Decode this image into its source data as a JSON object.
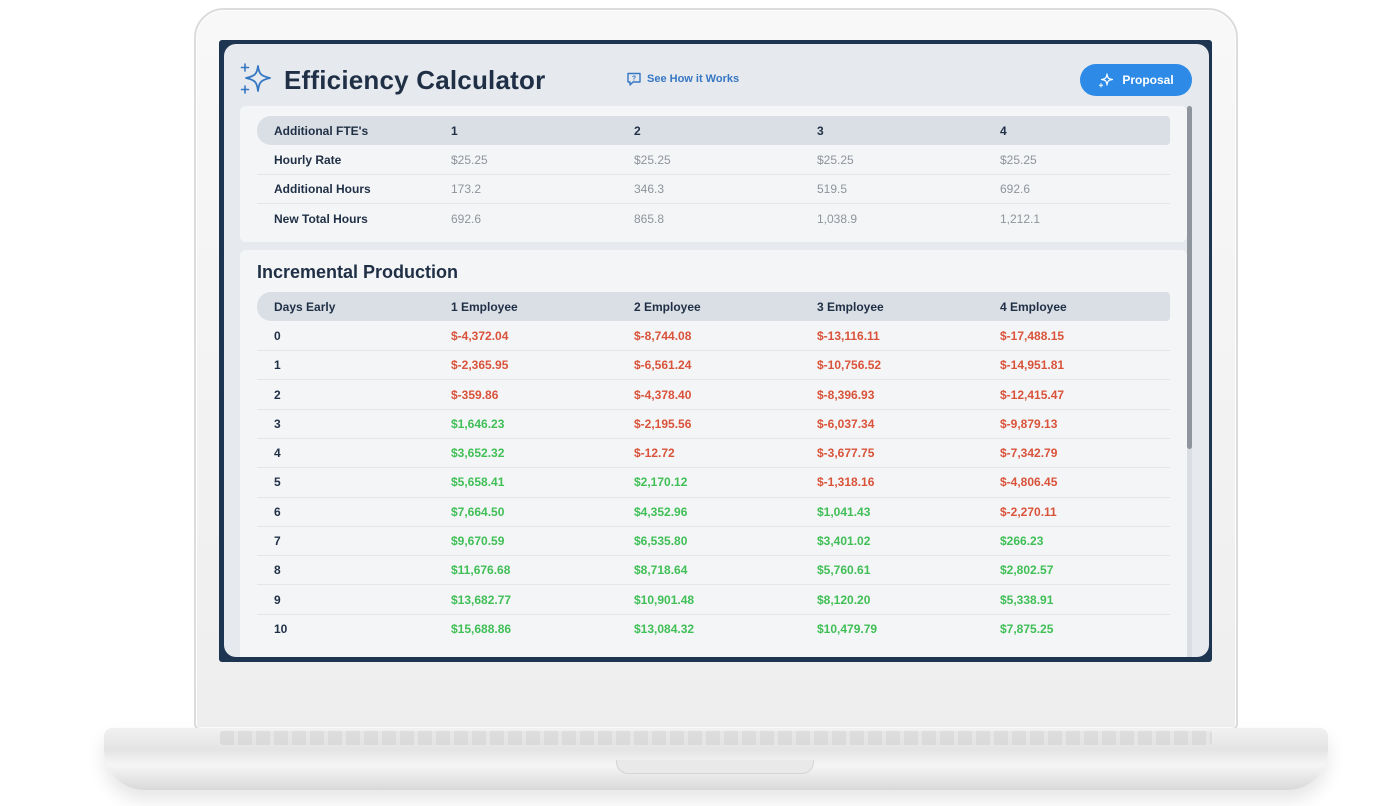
{
  "header": {
    "title": "Efficiency Calculator",
    "how_link": "See How it Works",
    "proposal_button": "Proposal",
    "icons": {
      "logo": "sparkle-stars-icon",
      "how": "help-chat-icon",
      "proposal": "sparkle-icon"
    }
  },
  "fte_table": {
    "headers": [
      "Additional FTE's",
      "1",
      "2",
      "3",
      "4"
    ],
    "rows": [
      [
        "Hourly Rate",
        "$25.25",
        "$25.25",
        "$25.25",
        "$25.25"
      ],
      [
        "Additional Hours",
        "173.2",
        "346.3",
        "519.5",
        "692.6"
      ],
      [
        "New Total Hours",
        "692.6",
        "865.8",
        "1,038.9",
        "1,212.1"
      ]
    ]
  },
  "production": {
    "title": "Incremental Production",
    "headers": [
      "Days Early",
      "1 Employee",
      "2 Employee",
      "3 Employee",
      "4 Employee"
    ],
    "rows": [
      [
        "0",
        "$-4,372.04",
        "$-8,744.08",
        "$-13,116.11",
        "$-17,488.15"
      ],
      [
        "1",
        "$-2,365.95",
        "$-6,561.24",
        "$-10,756.52",
        "$-14,951.81"
      ],
      [
        "2",
        "$-359.86",
        "$-4,378.40",
        "$-8,396.93",
        "$-12,415.47"
      ],
      [
        "3",
        "$1,646.23",
        "$-2,195.56",
        "$-6,037.34",
        "$-9,879.13"
      ],
      [
        "4",
        "$3,652.32",
        "$-12.72",
        "$-3,677.75",
        "$-7,342.79"
      ],
      [
        "5",
        "$5,658.41",
        "$2,170.12",
        "$-1,318.16",
        "$-4,806.45"
      ],
      [
        "6",
        "$7,664.50",
        "$4,352.96",
        "$1,041.43",
        "$-2,270.11"
      ],
      [
        "7",
        "$9,670.59",
        "$6,535.80",
        "$3,401.02",
        "$266.23"
      ],
      [
        "8",
        "$11,676.68",
        "$8,718.64",
        "$5,760.61",
        "$2,802.57"
      ],
      [
        "9",
        "$13,682.77",
        "$10,901.48",
        "$8,120.20",
        "$5,338.91"
      ],
      [
        "10",
        "$15,688.86",
        "$13,084.32",
        "$10,479.79",
        "$7,875.25"
      ]
    ]
  },
  "colors": {
    "negative": "#d9533a",
    "positive": "#3fbf56",
    "accent": "#2d8ae6",
    "title": "#1f2f45"
  }
}
